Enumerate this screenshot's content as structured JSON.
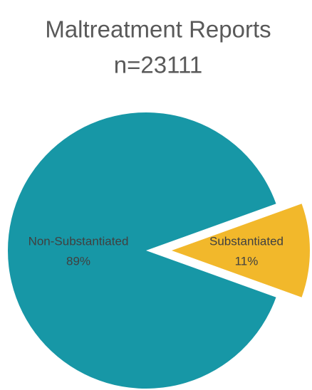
{
  "chart_data": {
    "type": "pie",
    "title": "Maltreatment Reports",
    "subtitle": "n=23111",
    "categories": [
      "Non-Substantiated",
      "Substantiated"
    ],
    "values": [
      89,
      11
    ],
    "value_labels": [
      "89%",
      "11%"
    ],
    "colors": [
      "#1797a6",
      "#f2b82b"
    ]
  }
}
